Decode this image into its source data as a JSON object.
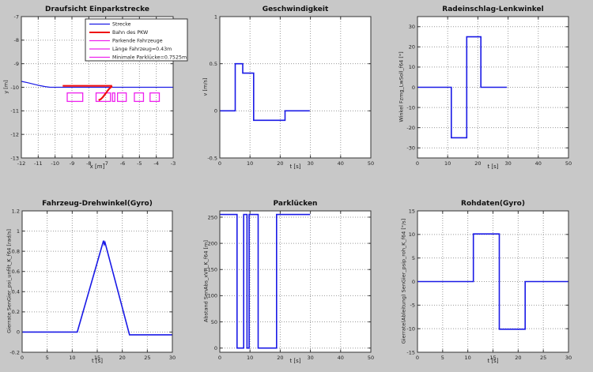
{
  "figure": {
    "background": "#c8c8c8"
  },
  "palette": {
    "blue": "#1a1ae6",
    "red": "#ee1111",
    "magenta": "#ee22ee",
    "grid": "#9a9a9a",
    "axis": "#333333",
    "text": "#222222",
    "plot_bg": "#ffffff"
  },
  "chart_data": [
    {
      "id": "einparkstrecke",
      "type": "line",
      "title": "Draufsicht Einparkstrecke",
      "xlabel": "x [m]",
      "ylabel": "y [m]",
      "xlim": [
        -12,
        -3
      ],
      "ylim": [
        -13,
        -7
      ],
      "xticks": [
        -12,
        -11,
        -10,
        -9,
        -8,
        -7,
        -6,
        -5,
        -4,
        -3
      ],
      "yticks": [
        -13,
        -12,
        -11,
        -10,
        -9,
        -8,
        -7
      ],
      "grid": true,
      "legend": {
        "position": "upper-right",
        "entries": [
          {
            "label": "Strecke",
            "color": "blue",
            "width": 1.2
          },
          {
            "label": "Bahn des PKW",
            "color": "red",
            "width": 2
          },
          {
            "label": "Parkende Fahrzeuge",
            "color": "magenta",
            "width": 1.3
          },
          {
            "label": "Länge Fahrzeug=0.43m",
            "color": "magenta",
            "width": 1.3
          },
          {
            "label": "Minimale Parklücke=0.7525m",
            "color": "magenta",
            "width": 1.3
          }
        ]
      },
      "series": [
        {
          "name": "strecke",
          "color": "blue",
          "width": 1.2,
          "points": [
            [
              -12,
              -9.75
            ],
            [
              -11.6,
              -9.81
            ],
            [
              -11.2,
              -9.88
            ],
            [
              -10.9,
              -9.93
            ],
            [
              -10.6,
              -9.97
            ],
            [
              -10.3,
              -10
            ],
            [
              -3,
              -10
            ]
          ]
        },
        {
          "name": "bahn-des-pkw-strasse",
          "color": "red",
          "width": 2.2,
          "points": [
            [
              -9.55,
              -9.94
            ],
            [
              -6.62,
              -9.94
            ]
          ]
        },
        {
          "name": "bahn-des-pkw-einparkkurve",
          "color": "red",
          "width": 2.2,
          "points": [
            [
              -7.42,
              -10.55
            ],
            [
              -7.3,
              -10.51
            ],
            [
              -7.18,
              -10.43
            ],
            [
              -7.05,
              -10.31
            ],
            [
              -6.92,
              -10.18
            ],
            [
              -6.8,
              -10.07
            ],
            [
              -6.7,
              -10.0
            ],
            [
              -6.62,
              -9.95
            ]
          ]
        }
      ],
      "rects": {
        "name": "parkende-fahrzeuge",
        "color": "magenta",
        "items": [
          [
            -9.28,
            -8.36,
            -10.24,
            -10.6
          ],
          [
            -7.57,
            -6.72,
            -10.24,
            -10.6
          ],
          [
            -6.6,
            -6.46,
            -10.24,
            -10.6
          ],
          [
            -6.3,
            -5.78,
            -10.24,
            -10.6
          ],
          [
            -5.3,
            -4.76,
            -10.24,
            -10.6
          ],
          [
            -4.37,
            -3.82,
            -10.24,
            -10.6
          ]
        ]
      }
    },
    {
      "id": "geschwindigkeit",
      "type": "line",
      "title": "Geschwindigkeit",
      "xlabel": "t [s]",
      "ylabel": "v [m/s]",
      "xlim": [
        0,
        50
      ],
      "ylim": [
        -0.5,
        1
      ],
      "xticks": [
        0,
        10,
        20,
        30,
        40,
        50
      ],
      "yticks": [
        -0.5,
        0,
        0.5,
        1
      ],
      "grid": true,
      "series": [
        {
          "name": "v",
          "color": "blue",
          "width": 1.6,
          "points": [
            [
              0,
              0
            ],
            [
              5.1,
              0
            ],
            [
              5.1,
              0.5
            ],
            [
              7.6,
              0.5
            ],
            [
              7.6,
              0.4
            ],
            [
              11.2,
              0.4
            ],
            [
              11.2,
              -0.1
            ],
            [
              21.6,
              -0.1
            ],
            [
              21.6,
              0
            ],
            [
              29.8,
              0
            ]
          ]
        }
      ]
    },
    {
      "id": "lenkwinkel",
      "type": "line",
      "title": "Radeinschlag-Lenkwinkel",
      "xlabel": "t [s]",
      "ylabel": "Winkel  Fzmg_LwSoll_f64 [°]",
      "xlim": [
        0,
        50
      ],
      "ylim": [
        -35,
        35
      ],
      "xticks": [
        0,
        10,
        20,
        30,
        40,
        50
      ],
      "yticks": [
        -30,
        -20,
        -10,
        0,
        10,
        20,
        30
      ],
      "grid": true,
      "series": [
        {
          "name": "lenkwinkel",
          "color": "blue",
          "width": 1.6,
          "points": [
            [
              0,
              0
            ],
            [
              11.2,
              0
            ],
            [
              11.2,
              -25
            ],
            [
              16.3,
              -25
            ],
            [
              16.3,
              25
            ],
            [
              21,
              25
            ],
            [
              21,
              0
            ],
            [
              29.6,
              0
            ]
          ]
        }
      ]
    },
    {
      "id": "drehwinkel-gyro",
      "type": "line",
      "title": "Fahrzeug-Drehwinkel(Gyro)",
      "xlabel": "t [s]",
      "ylabel": "Gierrate  SenGier_psi_unfilt_K_f64 [rad/s]",
      "xlim": [
        0,
        30
      ],
      "ylim": [
        -0.2,
        1.2
      ],
      "xticks": [
        0,
        5,
        10,
        15,
        20,
        25,
        30
      ],
      "yticks": [
        -0.2,
        0,
        0.2,
        0.4,
        0.6,
        0.8,
        1,
        1.2
      ],
      "grid": true,
      "series": [
        {
          "name": "gierrate",
          "color": "blue",
          "width": 1.6,
          "points": [
            [
              0,
              0
            ],
            [
              11,
              0
            ],
            [
              16.25,
              0.905
            ],
            [
              16.4,
              0.868
            ],
            [
              16.55,
              0.888
            ],
            [
              21.45,
              -0.027
            ],
            [
              30,
              -0.027
            ]
          ]
        }
      ]
    },
    {
      "id": "parkluecken",
      "type": "line",
      "title": "Parklücken",
      "xlabel": "t [s]",
      "ylabel": "Abstand  SenAbs_xVR_K_f64 [m]",
      "xlim": [
        0,
        50
      ],
      "ylim": [
        -8,
        262
      ],
      "xticks": [
        0,
        10,
        20,
        30,
        40,
        50
      ],
      "yticks": [
        0,
        50,
        100,
        150,
        200,
        250
      ],
      "grid": true,
      "series": [
        {
          "name": "abstand",
          "color": "blue",
          "width": 1.6,
          "points": [
            [
              0,
              255
            ],
            [
              5.7,
              255
            ],
            [
              5.7,
              0
            ],
            [
              7.9,
              0
            ],
            [
              7.9,
              255
            ],
            [
              9,
              255
            ],
            [
              9,
              0
            ],
            [
              9.7,
              0
            ],
            [
              9.7,
              255
            ],
            [
              12.7,
              255
            ],
            [
              12.7,
              0
            ],
            [
              18.8,
              0
            ],
            [
              18.8,
              255
            ],
            [
              29.9,
              255
            ]
          ]
        }
      ]
    },
    {
      "id": "rohdaten-gyro",
      "type": "line",
      "title": "Rohdaten(Gyro)",
      "xlabel": "t [s]",
      "ylabel": "Gierrate(Ableitung)  SenGier_psip_roh_K_f64 [°/s]",
      "xlim": [
        0,
        30
      ],
      "ylim": [
        -15,
        15
      ],
      "xticks": [
        0,
        5,
        10,
        15,
        20,
        25,
        30
      ],
      "yticks": [
        -15,
        -10,
        -5,
        0,
        5,
        10,
        15
      ],
      "grid": true,
      "series": [
        {
          "name": "gierrate-roh",
          "color": "blue",
          "width": 1.6,
          "points": [
            [
              0,
              0
            ],
            [
              11.1,
              0
            ],
            [
              11.1,
              10.1
            ],
            [
              16.25,
              10.1
            ],
            [
              16.25,
              -10.1
            ],
            [
              21.4,
              -10.1
            ],
            [
              21.4,
              0
            ],
            [
              30,
              0
            ]
          ]
        }
      ]
    }
  ]
}
